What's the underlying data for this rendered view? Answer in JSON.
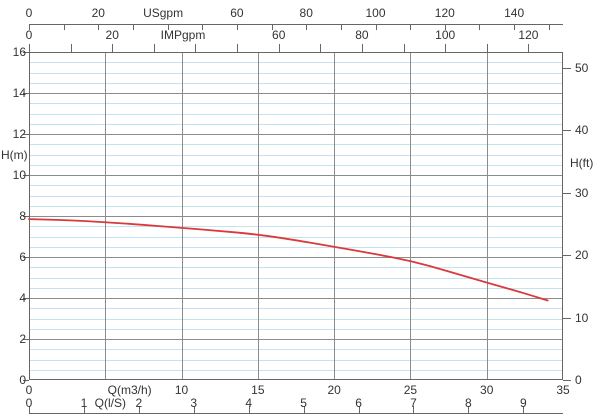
{
  "labels": {
    "hm": "H(m)",
    "hft": "H(ft)"
  },
  "chart_data": {
    "type": "line",
    "title": "",
    "legend": "none",
    "grid": {
      "major_color": "#8c8c8c",
      "minor_color": "#c3e3ef",
      "border_color": "#666666",
      "minor_step_m": 0.5,
      "major_step_m": 2,
      "vertical_step_m3h": 5
    },
    "x_range_m3h": [
      0,
      35
    ],
    "y_range_m": [
      0,
      16
    ],
    "series": [
      {
        "name": "head-curve",
        "color": "#d93a3c",
        "x_unit": "m3/h",
        "y_unit": "m",
        "points": [
          [
            0,
            7.85
          ],
          [
            2.5,
            7.8
          ],
          [
            5,
            7.7
          ],
          [
            7.5,
            7.57
          ],
          [
            10,
            7.42
          ],
          [
            12.5,
            7.27
          ],
          [
            15,
            7.1
          ],
          [
            17.5,
            6.82
          ],
          [
            20,
            6.5
          ],
          [
            22.5,
            6.17
          ],
          [
            25,
            5.82
          ],
          [
            27.5,
            5.3
          ],
          [
            30,
            4.75
          ],
          [
            32,
            4.33
          ],
          [
            34,
            3.88
          ]
        ]
      }
    ],
    "x_axes": [
      {
        "id": "usgpm",
        "name": "USgpm",
        "side": "top",
        "row": 0,
        "unit_per_m3h": 4.403,
        "tick_step": 10,
        "tick_max": 150,
        "labeled": [
          0,
          20,
          60,
          80,
          100,
          120,
          140
        ],
        "name_at": 38.7
      },
      {
        "id": "impgpm",
        "name": "IMPgpm",
        "side": "top",
        "row": 1,
        "unit_per_m3h": 3.666,
        "tick_step": 10,
        "tick_max": 120,
        "labeled": [
          0,
          20,
          60,
          80,
          100,
          120
        ],
        "name_at": 37.0
      },
      {
        "id": "m3h",
        "name": "Q(m3/h)",
        "side": "bottom",
        "row": 0,
        "unit_per_m3h": 1,
        "tick_step": 5,
        "tick_max": 35,
        "labeled": [
          0,
          10,
          15,
          20,
          25,
          30,
          35
        ],
        "name_at": 6.6
      },
      {
        "id": "ls",
        "name": "Q(l/S)",
        "side": "bottom",
        "row": 1,
        "unit_per_m3h": 0.27778,
        "tick_step": 1,
        "tick_max": 9,
        "labeled": [
          0,
          1,
          2,
          3,
          4,
          5,
          6,
          7,
          8,
          9
        ],
        "name_at": 1.48
      }
    ],
    "y_axes": [
      {
        "id": "m",
        "name": "H(m)",
        "side": "left",
        "max_m": 16,
        "labeled": [
          0,
          2,
          4,
          6,
          8,
          10,
          12,
          14,
          16
        ]
      },
      {
        "id": "ft",
        "name": "H(ft)",
        "side": "right",
        "per_m": 3.2808,
        "labeled": [
          0,
          10,
          20,
          30,
          40,
          50
        ]
      }
    ]
  }
}
